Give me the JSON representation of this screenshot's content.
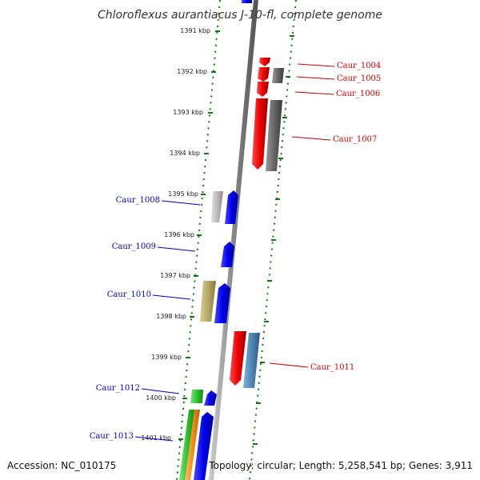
{
  "title": "Chloroflexus aurantiacus J-10-fl, complete genome",
  "accession": "Accession: NC_010175",
  "topology": "Topology: circular; Length: 5,258,541 bp; Genes: 3,911",
  "ticks": [
    "1391 kbp",
    "1392 kbp",
    "1393 kbp",
    "1394 kbp",
    "1395 kbp",
    "1396 kbp",
    "1397 kbp",
    "1398 kbp",
    "1399 kbp",
    "1400 kbp",
    "1401 kbp"
  ],
  "genes_left": [
    "Caur_1008",
    "Caur_1009",
    "Caur_1010",
    "Caur_1012",
    "Caur_1013"
  ],
  "genes_right": [
    "Caur_1004",
    "Caur_1005",
    "Caur_1006",
    "Caur_1007",
    "Caur_1011"
  ],
  "colors": {
    "forward": "#0000ee",
    "reverse": "#ee0000",
    "grey": "#666666",
    "light_grey": "#bbbbbb",
    "tan": "#b5a868",
    "steel": "#4f86b6",
    "green": "#2fc12f",
    "orange": "#f0901c",
    "axis_dots": "#117711",
    "backbone": "#888888"
  }
}
